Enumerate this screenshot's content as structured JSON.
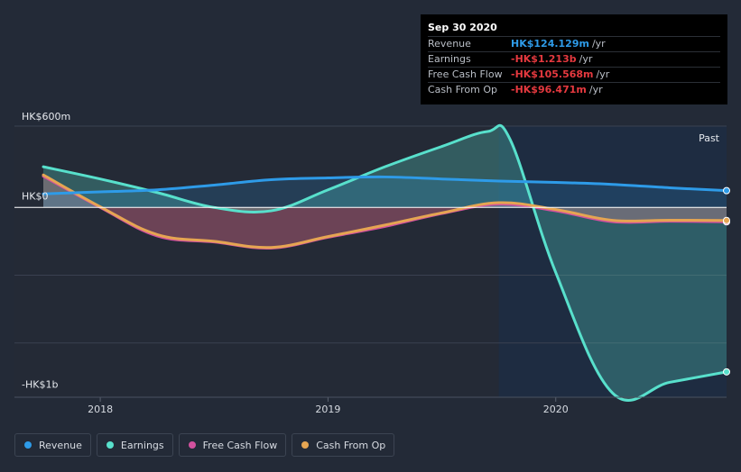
{
  "tooltip": {
    "date": "Sep 30 2020",
    "rows": [
      {
        "label": "Revenue",
        "value": "HK$124.129m",
        "unit": "/yr",
        "color": "#2e9be8"
      },
      {
        "label": "Earnings",
        "value": "-HK$1.213b",
        "unit": "/yr",
        "color": "#e5393f"
      },
      {
        "label": "Free Cash Flow",
        "value": "-HK$105.568m",
        "unit": "/yr",
        "color": "#e5393f"
      },
      {
        "label": "Cash From Op",
        "value": "-HK$96.471m",
        "unit": "/yr",
        "color": "#e5393f"
      }
    ]
  },
  "chart_data": {
    "type": "line",
    "y_top_label": "HK$600m",
    "y_zero_label": "HK$0",
    "y_bottom_label": "-HK$1b",
    "past_label": "Past",
    "ylim": [
      -1400,
      600
    ],
    "xlim": [
      2017.75,
      2020.75
    ],
    "x_ticks": [
      {
        "label": "2018",
        "value": 2018.0
      },
      {
        "label": "2019",
        "value": 2019.0
      },
      {
        "label": "2020",
        "value": 2020.0
      }
    ],
    "highlight_start": 2019.75,
    "series": [
      {
        "name": "Revenue",
        "color": "#2e9be8",
        "x": [
          2017.75,
          2018.0,
          2018.25,
          2018.5,
          2018.75,
          2019.0,
          2019.25,
          2019.5,
          2019.75,
          2020.0,
          2020.25,
          2020.5,
          2020.75
        ],
        "y": [
          100,
          115,
          130,
          165,
          205,
          218,
          225,
          210,
          195,
          185,
          170,
          145,
          124
        ]
      },
      {
        "name": "Earnings",
        "color": "#58e0cc",
        "x": [
          2017.75,
          2018.0,
          2018.25,
          2018.5,
          2018.75,
          2019.0,
          2019.25,
          2019.5,
          2019.7,
          2019.8,
          2020.0,
          2020.25,
          2020.5,
          2020.75
        ],
        "y": [
          300,
          210,
          110,
          0,
          -25,
          130,
          300,
          450,
          560,
          500,
          -480,
          -1370,
          -1290,
          -1213
        ]
      },
      {
        "name": "Free Cash Flow",
        "color": "#d2519e",
        "x": [
          2017.75,
          2018.0,
          2018.25,
          2018.5,
          2018.75,
          2019.0,
          2019.25,
          2019.5,
          2019.75,
          2020.0,
          2020.25,
          2020.5,
          2020.75
        ],
        "y": [
          230,
          0,
          -210,
          -255,
          -300,
          -220,
          -140,
          -45,
          25,
          -25,
          -105,
          -102,
          -106
        ]
      },
      {
        "name": "Cash From Op",
        "color": "#e5a552",
        "x": [
          2017.75,
          2018.0,
          2018.25,
          2018.5,
          2018.75,
          2019.0,
          2019.25,
          2019.5,
          2019.75,
          2020.0,
          2020.25,
          2020.5,
          2020.75
        ],
        "y": [
          240,
          5,
          -200,
          -250,
          -295,
          -215,
          -130,
          -40,
          35,
          -15,
          -95,
          -94,
          -96
        ]
      }
    ]
  },
  "legend": [
    {
      "label": "Revenue",
      "color": "#2e9be8"
    },
    {
      "label": "Earnings",
      "color": "#58e0cc"
    },
    {
      "label": "Free Cash Flow",
      "color": "#d2519e"
    },
    {
      "label": "Cash From Op",
      "color": "#e5a552"
    }
  ]
}
